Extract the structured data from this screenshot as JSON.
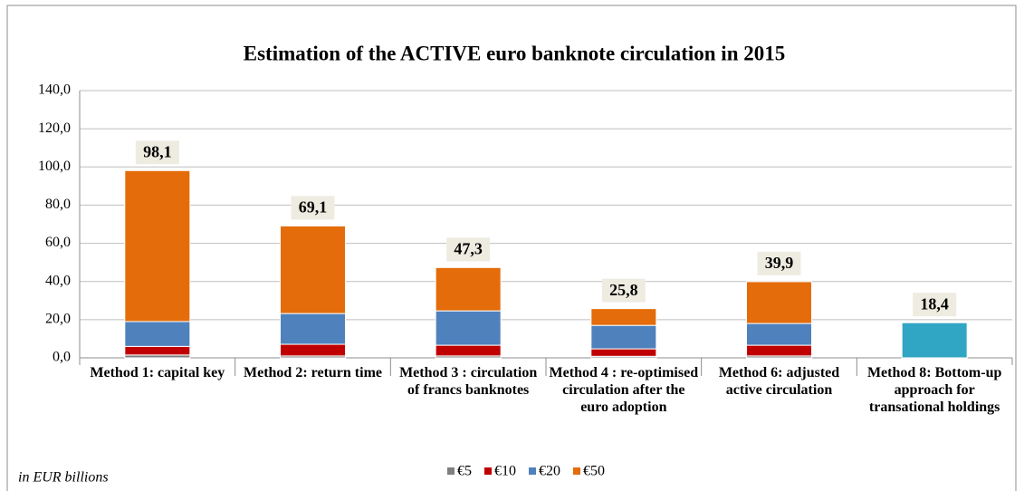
{
  "chart_data": {
    "type": "stacked_bar",
    "title": "Estimation of the ACTIVE  euro banknote circulation in 2015",
    "note": "in EUR billions",
    "categories": [
      "Method 1: capital key",
      "Method 2: return time",
      "Method 3 : circulation of francs banknotes",
      "Method 4 : re-optimised circulation after the euro adoption",
      "Method 6: adjusted active circulation",
      "Method 8: Bottom-up approach for transational holdings"
    ],
    "series": [
      {
        "name": "€5",
        "color": "#7f7f7f",
        "values": [
          1.5,
          1.0,
          1.0,
          0.8,
          1.0,
          null
        ]
      },
      {
        "name": "€10",
        "color": "#c00000",
        "values": [
          4.5,
          6.1,
          5.6,
          3.9,
          5.6,
          null
        ]
      },
      {
        "name": "€20",
        "color": "#4f81bd",
        "values": [
          13.0,
          16.1,
          18.0,
          12.3,
          11.4,
          null
        ]
      },
      {
        "name": "€50",
        "color": "#e46c0a",
        "values": [
          79.1,
          45.9,
          22.7,
          8.8,
          21.9,
          null
        ]
      },
      {
        "color": "#31a5c4",
        "values": [
          null,
          null,
          null,
          null,
          null,
          18.4
        ]
      }
    ],
    "totals": [
      98.1,
      69.1,
      47.3,
      25.8,
      39.9,
      18.4
    ],
    "total_labels": [
      "98,1",
      "69,1",
      "47,3",
      "25,8",
      "39,9",
      "18,4"
    ],
    "ylim": [
      0,
      140
    ],
    "yticks": [
      {
        "value": 0,
        "label": "0,0"
      },
      {
        "value": 20,
        "label": "20,0"
      },
      {
        "value": 40,
        "label": "40,0"
      },
      {
        "value": 60,
        "label": "60,0"
      },
      {
        "value": 80,
        "label": "80,0"
      },
      {
        "value": 100,
        "label": "100,0"
      },
      {
        "value": 120,
        "label": "120,0"
      },
      {
        "value": 140,
        "label": "140,0"
      }
    ],
    "grid": true
  }
}
